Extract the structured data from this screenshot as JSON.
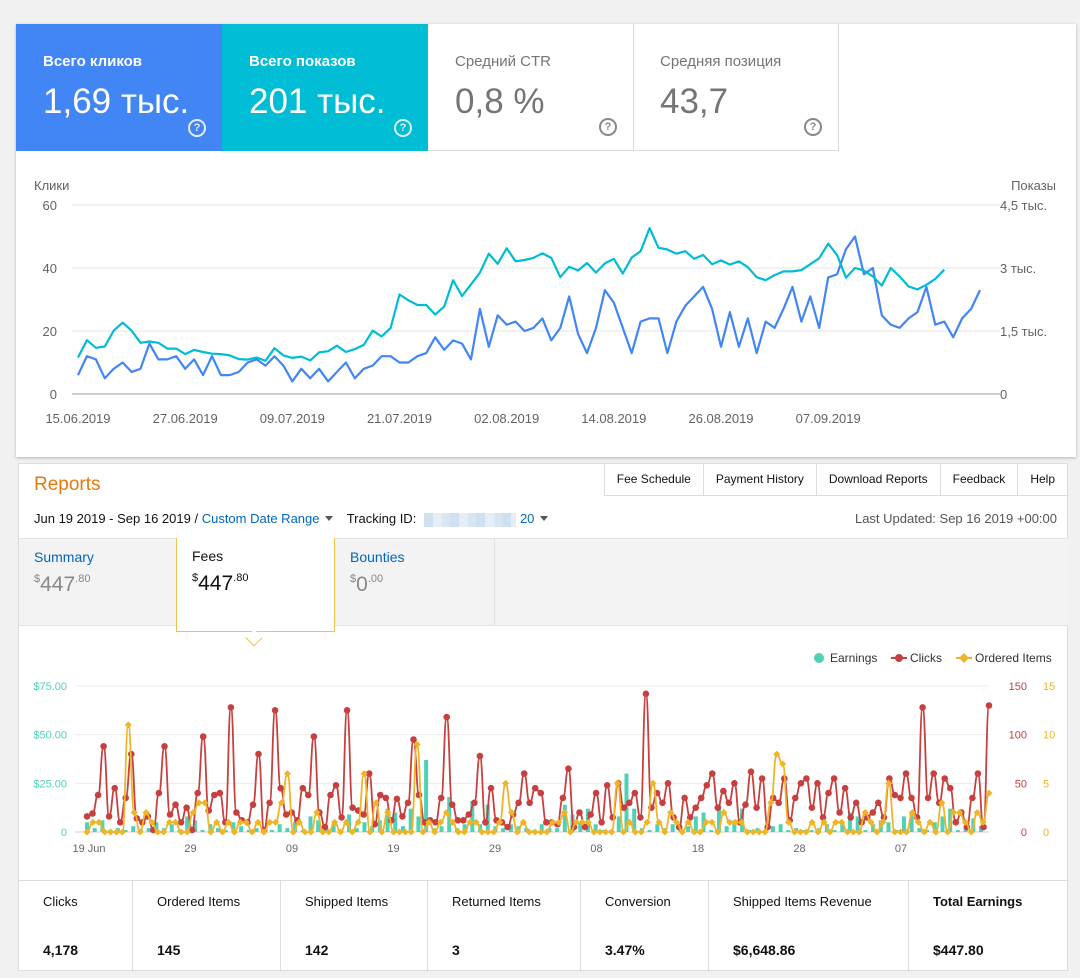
{
  "gsc": {
    "metrics": [
      {
        "label": "Всего кликов",
        "value": "1,69 тыс."
      },
      {
        "label": "Всего показов",
        "value": "201 тыс."
      },
      {
        "label": "Средний CTR",
        "value": "0,8 %"
      },
      {
        "label": "Средняя позиция",
        "value": "43,7"
      }
    ],
    "help_glyph": "?",
    "colors": {
      "clicks": "#4285f4",
      "impressions": "#00bcd4"
    }
  },
  "amz": {
    "title": "Reports",
    "links": [
      "Fee Schedule",
      "Payment History",
      "Download Reports",
      "Feedback",
      "Help"
    ],
    "date_range": "Jun 19 2019 - Sep 16 2019 /",
    "custom_range": "Custom Date Range",
    "tracking_label": "Tracking ID:",
    "tracking_suffix": "20",
    "last_updated": "Last Updated: Sep 16 2019 +00:00",
    "tabs": [
      {
        "label": "Summary",
        "currency": "$",
        "amount": "447",
        "cents": ".80"
      },
      {
        "label": "Fees",
        "currency": "$",
        "amount": "447",
        "cents": ".80"
      },
      {
        "label": "Bounties",
        "currency": "$",
        "amount": "0",
        "cents": ".00"
      }
    ],
    "stats": [
      {
        "label": "Clicks",
        "value": "4,178"
      },
      {
        "label": "Ordered Items",
        "value": "145"
      },
      {
        "label": "Shipped Items",
        "value": "142"
      },
      {
        "label": "Returned Items",
        "value": "3"
      },
      {
        "label": "Conversion",
        "value": "3.47%"
      },
      {
        "label": "Shipped Items Revenue",
        "value": "$6,648.86"
      },
      {
        "label": "Total Earnings",
        "value": "$447.80"
      }
    ]
  },
  "chart_data": [
    {
      "type": "line",
      "title": "",
      "ylabel_left": "Клики",
      "ylabel_right": "Показы",
      "ylim_left": [
        0,
        60
      ],
      "ylim_right": [
        0,
        4500
      ],
      "yticks_left": [
        "0",
        "20",
        "40",
        "60"
      ],
      "yticks_right": [
        "0",
        "1,5 тыс.",
        "3 тыс.",
        "4,5 тыс."
      ],
      "xticks": [
        "15.06.2019",
        "27.06.2019",
        "09.07.2019",
        "21.07.2019",
        "02.08.2019",
        "14.08.2019",
        "26.08.2019",
        "07.09.2019"
      ],
      "x_start": "2019-06-15",
      "grid": true,
      "series": [
        {
          "name": "Клики",
          "axis": "left",
          "color": "#4285f4",
          "values": [
            6,
            12,
            11,
            5,
            8,
            10,
            7,
            8,
            16,
            11,
            11,
            12,
            8,
            11,
            6,
            12,
            6,
            6,
            7,
            10,
            11,
            9,
            12,
            9,
            4,
            8,
            5,
            8,
            4,
            7,
            10,
            5,
            8,
            9,
            12,
            12,
            10,
            10,
            12,
            13,
            18,
            14,
            17,
            16,
            11,
            27,
            15,
            25,
            22,
            23,
            20,
            21,
            24,
            17,
            21,
            31,
            19,
            13,
            21,
            33,
            29,
            21,
            13,
            23,
            24,
            24,
            13,
            23,
            28,
            31,
            34,
            27,
            15,
            26,
            15,
            24,
            13,
            23,
            21,
            27,
            34,
            23,
            31,
            21,
            37,
            38,
            46,
            50,
            38,
            40,
            25,
            22,
            21,
            24,
            26,
            34,
            22,
            23,
            18,
            24,
            27,
            33
          ]
        },
        {
          "name": "Показы",
          "axis": "right",
          "color": "#00bcd4",
          "values": [
            870,
            1280,
            1100,
            1130,
            1510,
            1700,
            1510,
            1220,
            1250,
            1220,
            1080,
            1080,
            950,
            1050,
            1000,
            960,
            950,
            920,
            830,
            820,
            870,
            790,
            1090,
            920,
            860,
            890,
            800,
            990,
            1020,
            1150,
            1000,
            1070,
            1170,
            1510,
            1370,
            1570,
            2370,
            2230,
            2120,
            2120,
            1890,
            2080,
            2710,
            2330,
            2610,
            2890,
            3340,
            3100,
            3470,
            3160,
            3190,
            3240,
            3350,
            3240,
            2780,
            3030,
            2940,
            3120,
            2890,
            3110,
            3220,
            2870,
            3250,
            3400,
            3950,
            3480,
            3440,
            3340,
            3400,
            3220,
            3310,
            3090,
            3180,
            3080,
            3160,
            3020,
            2780,
            2710,
            2830,
            2920,
            2920,
            2950,
            3090,
            3230,
            3580,
            3310,
            2770,
            3000,
            2940,
            2800,
            2580,
            3000,
            2800,
            2560,
            2490,
            2600,
            2740,
            2960
          ]
        }
      ]
    },
    {
      "type": "bar",
      "title": "",
      "legend": [
        "Earnings",
        "Clicks",
        "Ordered Items"
      ],
      "legend_position": "top-right",
      "ylim_left": [
        0,
        75
      ],
      "ylim_right_clicks": [
        0,
        150
      ],
      "ylim_right_items": [
        0,
        15
      ],
      "yticks_left": [
        "0",
        "$25.00",
        "$50.00",
        "$75.00"
      ],
      "yticks_right_clicks": [
        "0",
        "50",
        "100",
        "150"
      ],
      "yticks_right_items": [
        "0",
        "5",
        "10",
        "15"
      ],
      "xticks": [
        "19 Jun",
        "29",
        "09",
        "19",
        "29",
        "08",
        "18",
        "28",
        "07"
      ],
      "x_start": "2019-06-19",
      "grid": true,
      "series": [
        {
          "name": "Earnings",
          "type": "bar",
          "axis": "left",
          "color": "#4fd1b8",
          "values": [
            5,
            2,
            6,
            1,
            2,
            1,
            3,
            1,
            2,
            5,
            2,
            4,
            1,
            8,
            6,
            1,
            4,
            2,
            1,
            5,
            3,
            1,
            2,
            1,
            1,
            4,
            2,
            5,
            1,
            8,
            6,
            3,
            4,
            1,
            9,
            2,
            5,
            3,
            6,
            12,
            10,
            3,
            12,
            8,
            37,
            2,
            3,
            18,
            2,
            4,
            16,
            4,
            14,
            3,
            2,
            4,
            3,
            2,
            1,
            4,
            2,
            2,
            14,
            9,
            5,
            12,
            4,
            1,
            1,
            8,
            30,
            12,
            2,
            1,
            4,
            2,
            4,
            1,
            3,
            8,
            10,
            1,
            14,
            3,
            6,
            12,
            1,
            2,
            1,
            3,
            4,
            1,
            2,
            1,
            1,
            2,
            4,
            1,
            5,
            10,
            8,
            1,
            4,
            6,
            5,
            1,
            8,
            10,
            2,
            1,
            5,
            8,
            12,
            1,
            3,
            7,
            3
          ]
        },
        {
          "name": "Clicks",
          "type": "line",
          "axis": "right_clicks",
          "color": "#c7403f",
          "values": [
            16,
            19,
            38,
            88,
            16,
            45,
            10,
            35,
            80,
            14,
            10,
            16,
            2,
            40,
            88,
            18,
            28,
            10,
            25,
            2,
            40,
            98,
            22,
            38,
            40,
            10,
            128,
            20,
            12,
            10,
            28,
            80,
            2,
            30,
            125,
            45,
            18,
            20,
            12,
            45,
            38,
            98,
            20,
            5,
            38,
            48,
            15,
            125,
            25,
            22,
            18,
            60,
            8,
            38,
            35,
            12,
            34,
            16,
            30,
            95,
            38,
            10,
            12,
            10,
            35,
            118,
            28,
            12,
            12,
            18,
            30,
            78,
            10,
            45,
            12,
            10,
            5,
            18,
            30,
            60,
            30,
            45,
            40,
            10,
            10,
            8,
            35,
            65,
            5,
            20,
            5,
            18,
            40,
            10,
            48,
            15,
            50,
            25,
            30,
            40,
            15,
            142,
            25,
            40,
            30,
            50,
            15,
            5,
            35,
            15,
            25,
            35,
            48,
            60,
            25,
            42,
            30,
            50,
            10,
            28,
            62,
            25,
            55,
            5,
            35,
            30,
            55,
            12,
            35,
            50,
            55,
            25,
            50,
            15,
            40,
            55,
            20,
            45,
            15,
            30,
            10,
            15,
            20,
            30,
            15,
            55,
            38,
            35,
            60,
            35,
            15,
            128,
            35,
            60,
            30,
            55,
            45,
            10,
            20,
            5,
            35,
            60,
            5,
            130
          ]
        },
        {
          "name": "Ordered Items",
          "type": "line",
          "axis": "right_items",
          "color": "#f0b429",
          "values": [
            0,
            1,
            1,
            0,
            0,
            0,
            0,
            11,
            2,
            0,
            2,
            1,
            0,
            0,
            1,
            1,
            0,
            0,
            2,
            3,
            3,
            0,
            1,
            0,
            1,
            0,
            1,
            1,
            0,
            1,
            0,
            1,
            1,
            3,
            6,
            0,
            1,
            0,
            0,
            2,
            0,
            0,
            1,
            0,
            1,
            0,
            1,
            6,
            0,
            3,
            0,
            2,
            0,
            0,
            0,
            0,
            9,
            0,
            1,
            0,
            1,
            2,
            1,
            0,
            0,
            1,
            1,
            0,
            0,
            0,
            1,
            5,
            2,
            0,
            1,
            0,
            0,
            0,
            0,
            1,
            1,
            2,
            0,
            1,
            1,
            1,
            0,
            0,
            0,
            0,
            5,
            0,
            1,
            0,
            0,
            1,
            5,
            1,
            0,
            2,
            1,
            0,
            1,
            0,
            0,
            1,
            1,
            0,
            2,
            1,
            1,
            1,
            0,
            0,
            0,
            0,
            3,
            8,
            7,
            1,
            0,
            0,
            0,
            1,
            0,
            1,
            0,
            1,
            1,
            0,
            0,
            0,
            2,
            1,
            0,
            1,
            5,
            0,
            0,
            0,
            2,
            1,
            0,
            1,
            0,
            3,
            0,
            2,
            2,
            1,
            0,
            2,
            1,
            4
          ]
        }
      ]
    }
  ]
}
